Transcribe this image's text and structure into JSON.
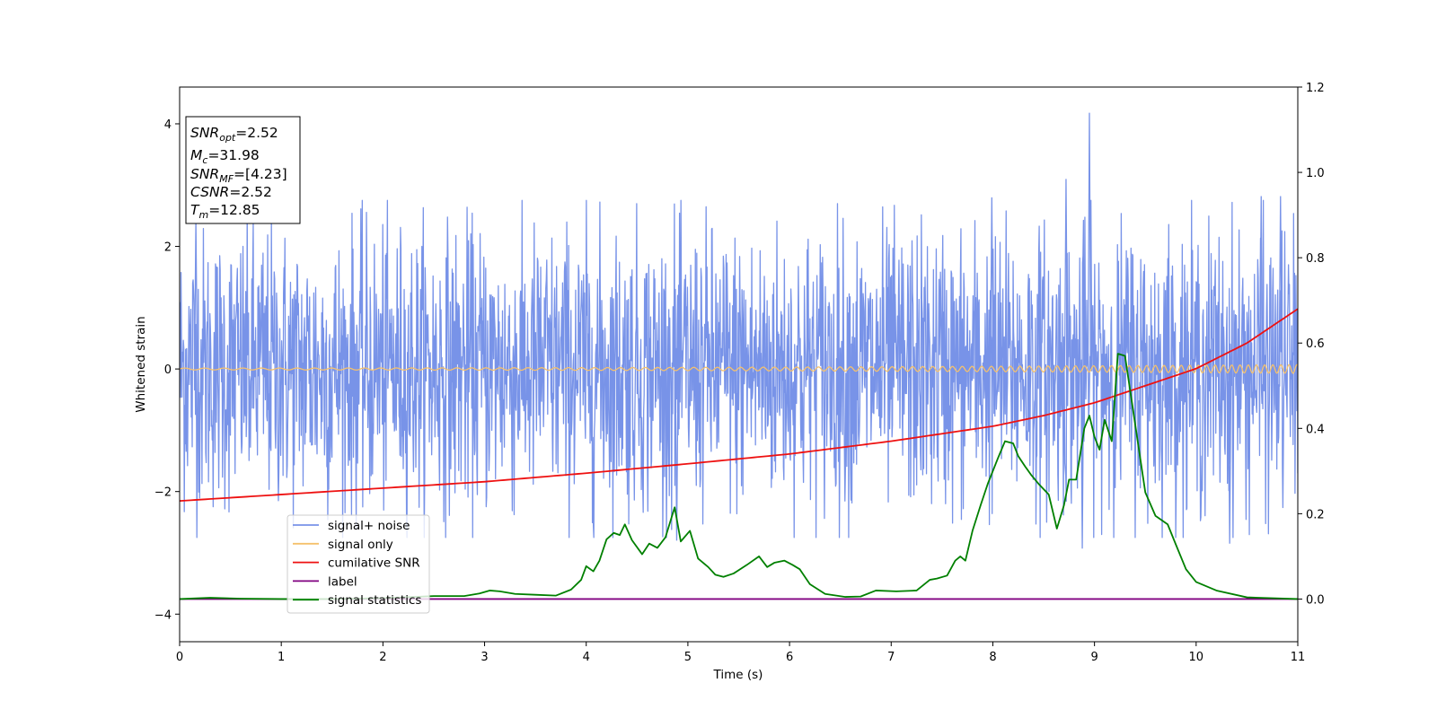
{
  "chart_data": {
    "type": "line",
    "xlabel": "Time (s)",
    "ylabel": "Whitened strain",
    "xlim": [
      0,
      11
    ],
    "ylim": [
      -4.45,
      4.6
    ],
    "y2lim": [
      -0.1,
      1.2
    ],
    "x_ticks": [
      0,
      1,
      2,
      3,
      4,
      5,
      6,
      7,
      8,
      9,
      10,
      11
    ],
    "y_ticks": [
      -4,
      -2,
      0,
      2,
      4
    ],
    "y2_ticks": [
      "0.0",
      "0.2",
      "0.4",
      "0.6",
      "0.8",
      "1.0",
      "1.2"
    ],
    "grid": false,
    "legend_position": "lower-left",
    "stats_box": {
      "lines": [
        {
          "sym": "SNR",
          "sub": "opt",
          "val": "=2.52"
        },
        {
          "sym": "M",
          "sub": "c",
          "val": "=31.98"
        },
        {
          "sym": "SNR",
          "sub": "MF",
          "val": "=[4.23]"
        },
        {
          "sym": "CSNR",
          "sub": "",
          "val": "=2.52"
        },
        {
          "sym": "T",
          "sub": "m",
          "val": "=12.85"
        }
      ]
    },
    "series": [
      {
        "name": "signal+ noise",
        "axis": "left",
        "color": "#7893e8",
        "kind": "noise",
        "envelope_typical": [
          -1.3,
          1.3
        ],
        "envelope_extreme": [
          -2.9,
          4.2
        ],
        "peaks": [
          {
            "x": 8.95,
            "y": 4.18
          },
          {
            "x": 8.72,
            "y": 3.1
          },
          {
            "x": 0.16,
            "y": 2.45
          },
          {
            "x": 10.83,
            "y": 2.82
          },
          {
            "x": 10.64,
            "y": 2.82
          },
          {
            "x": 7.99,
            "y": 2.8
          },
          {
            "x": 10.33,
            "y": -2.85
          },
          {
            "x": 8.88,
            "y": -2.93
          },
          {
            "x": 4.89,
            "y": -2.8
          }
        ]
      },
      {
        "name": "signal only",
        "axis": "left",
        "color": "#f5c16c",
        "kind": "chirp",
        "amplitude_start": 0.015,
        "amplitude_end": 0.07
      },
      {
        "name": "cumilative SNR",
        "axis": "right",
        "color": "#ee1111",
        "x": [
          0,
          1,
          2,
          3,
          4,
          5,
          6,
          7,
          8,
          8.5,
          9,
          9.5,
          10,
          10.5,
          11
        ],
        "y": [
          0.23,
          0.245,
          0.26,
          0.275,
          0.295,
          0.317,
          0.34,
          0.37,
          0.405,
          0.43,
          0.46,
          0.5,
          0.54,
          0.6,
          0.68
        ]
      },
      {
        "name": "label",
        "axis": "right",
        "color": "#800080",
        "x": [
          0,
          11
        ],
        "y": [
          0.0,
          0.0
        ]
      },
      {
        "name": "signal statistics",
        "axis": "right",
        "color": "#008000",
        "x": [
          0,
          0.3,
          0.6,
          1.0,
          1.5,
          2.0,
          2.5,
          2.8,
          2.95,
          3.05,
          3.15,
          3.3,
          3.5,
          3.7,
          3.85,
          3.95,
          4.0,
          4.07,
          4.13,
          4.2,
          4.27,
          4.33,
          4.38,
          4.45,
          4.55,
          4.62,
          4.7,
          4.78,
          4.87,
          4.93,
          5.02,
          5.1,
          5.2,
          5.27,
          5.35,
          5.45,
          5.58,
          5.7,
          5.78,
          5.85,
          5.95,
          6.03,
          6.1,
          6.2,
          6.35,
          6.55,
          6.7,
          6.85,
          7.05,
          7.25,
          7.38,
          7.45,
          7.55,
          7.63,
          7.68,
          7.73,
          7.8,
          7.88,
          7.95,
          8.05,
          8.12,
          8.2,
          8.25,
          8.32,
          8.38,
          8.45,
          8.55,
          8.63,
          8.7,
          8.75,
          8.82,
          8.9,
          8.95,
          9.0,
          9.05,
          9.1,
          9.17,
          9.23,
          9.3,
          9.4,
          9.5,
          9.6,
          9.72,
          9.8,
          9.9,
          10.0,
          10.2,
          10.5,
          11.0
        ],
        "y": [
          0.0,
          0.003,
          0.001,
          0.0,
          0.0,
          0.002,
          0.007,
          0.007,
          0.013,
          0.02,
          0.018,
          0.012,
          0.01,
          0.008,
          0.022,
          0.045,
          0.077,
          0.065,
          0.09,
          0.14,
          0.155,
          0.15,
          0.175,
          0.138,
          0.105,
          0.13,
          0.12,
          0.145,
          0.215,
          0.135,
          0.16,
          0.095,
          0.075,
          0.057,
          0.052,
          0.06,
          0.08,
          0.1,
          0.075,
          0.085,
          0.09,
          0.08,
          0.07,
          0.035,
          0.012,
          0.005,
          0.006,
          0.02,
          0.018,
          0.02,
          0.045,
          0.048,
          0.055,
          0.09,
          0.1,
          0.09,
          0.16,
          0.22,
          0.27,
          0.33,
          0.37,
          0.365,
          0.335,
          0.31,
          0.29,
          0.27,
          0.245,
          0.165,
          0.22,
          0.28,
          0.28,
          0.4,
          0.43,
          0.38,
          0.35,
          0.42,
          0.37,
          0.575,
          0.57,
          0.41,
          0.25,
          0.195,
          0.175,
          0.128,
          0.07,
          0.04,
          0.02,
          0.004,
          0.0
        ]
      }
    ]
  }
}
